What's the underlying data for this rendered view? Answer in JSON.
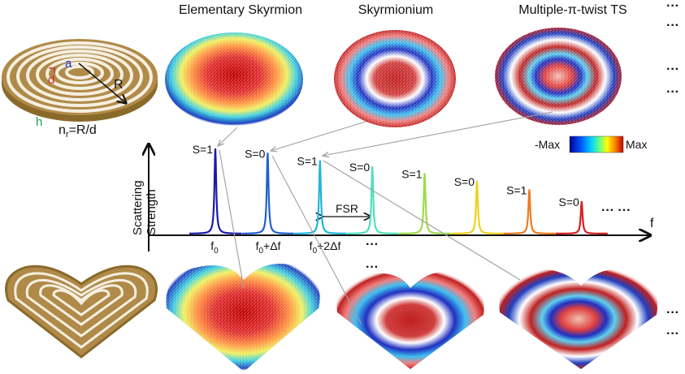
{
  "titles": {
    "col1": "Elementary Skyrmion",
    "col2": "Skyrmionium",
    "col3": "Multiple-π-twist TS",
    "ellipsis": "···"
  },
  "disk": {
    "label_a": "a",
    "label_d": "d",
    "label_R": "R",
    "label_h": "h",
    "formula_n": "n",
    "formula_sub": "r",
    "formula_rest": "=R/d"
  },
  "colorbar": {
    "min_label": "-Max",
    "max_label": "Max",
    "colors": [
      "#00008b",
      "#0050ff",
      "#00d0ff",
      "#60ff90",
      "#ffff00",
      "#ff8000",
      "#c00000"
    ]
  },
  "chart_data": {
    "type": "line",
    "ylabel_line1": "Scattering",
    "ylabel_line2": "Strength",
    "xlabel": "f",
    "fsr_label": "FSR",
    "peaks": [
      {
        "index": 0,
        "height": 1.0,
        "label": "S=1",
        "color": "#1a1aa8"
      },
      {
        "index": 1,
        "height": 0.95,
        "label": "S=0",
        "color": "#1f5fcf"
      },
      {
        "index": 2,
        "height": 0.86,
        "label": "S=1",
        "color": "#22b4dc"
      },
      {
        "index": 3,
        "height": 0.79,
        "label": "S=0",
        "color": "#4fe0c0"
      },
      {
        "index": 4,
        "height": 0.71,
        "label": "S=1",
        "color": "#9edc4a"
      },
      {
        "index": 5,
        "height": 0.62,
        "label": "S=0",
        "color": "#f0d020"
      },
      {
        "index": 6,
        "height": 0.52,
        "label": "S=1",
        "color": "#ec7a20"
      },
      {
        "index": 7,
        "height": 0.38,
        "label": "S=0",
        "color": "#d42020"
      }
    ],
    "ticks": [
      {
        "base": "f",
        "sub": "0",
        "rest": ""
      },
      {
        "base": "f",
        "sub": "0",
        "rest": "+Δf"
      },
      {
        "base": "f",
        "sub": "0",
        "rest": "+2Δf"
      }
    ],
    "tick_more": "···",
    "tail_dots": "···  ···"
  }
}
